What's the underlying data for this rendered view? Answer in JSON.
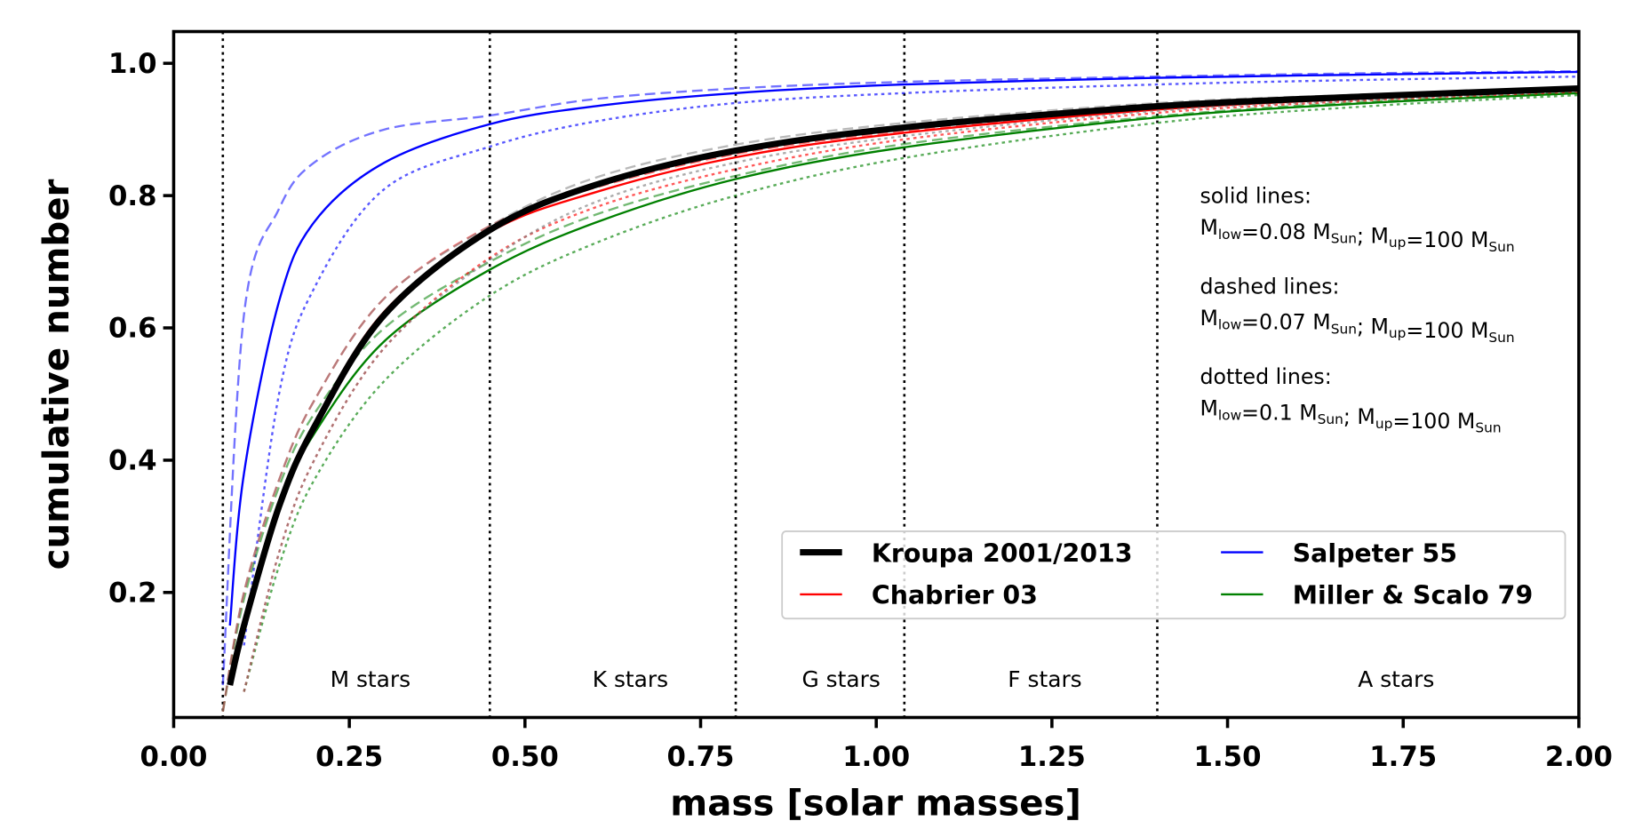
{
  "chart_data": {
    "type": "line",
    "title": "",
    "xlabel": "mass [solar masses]",
    "ylabel": "cumulative number",
    "xlim": [
      0.0,
      2.0
    ],
    "ylim": [
      0.011,
      1.048
    ],
    "xticks": [
      "0.00",
      "0.25",
      "0.50",
      "0.75",
      "1.00",
      "1.25",
      "1.50",
      "1.75",
      "2.00"
    ],
    "yticks": [
      "0.2",
      "0.4",
      "0.6",
      "0.8",
      "1.0"
    ],
    "grid": false,
    "legend_placement": "lower-right",
    "legend": [
      {
        "name": "Kroupa 2001/2013",
        "color": "#000000"
      },
      {
        "name": "Salpeter 55",
        "color": "#0000ff"
      },
      {
        "name": "Chabrier 03",
        "color": "#ff0000"
      },
      {
        "name": "Miller & Scalo 79",
        "color": "#008000"
      }
    ],
    "class_boundaries": [
      0.07,
      0.45,
      0.8,
      1.04,
      1.4
    ],
    "class_labels": [
      {
        "label": "M stars",
        "x": 0.28
      },
      {
        "label": "K stars",
        "x": 0.65
      },
      {
        "label": "G stars",
        "x": 0.95
      },
      {
        "label": "F stars",
        "x": 1.24
      },
      {
        "label": "A stars",
        "x": 1.74
      }
    ],
    "annotations": [
      {
        "title": "solid lines:",
        "mlow": "0.08",
        "mup": "100"
      },
      {
        "title": "dashed lines:",
        "mlow": "0.07",
        "mup": "100"
      },
      {
        "title": "dotted lines:",
        "mlow": "0.1",
        "mup": "100"
      }
    ],
    "annotation_parts": {
      "M": "M",
      "low": "low",
      "up": "up",
      "sun": "Sun"
    },
    "series": [
      {
        "imf": "Kroupa 2001/2013",
        "style": "solid",
        "color": "#000000",
        "x": [
          0.08,
          0.1,
          0.15,
          0.2,
          0.3,
          0.45,
          0.6,
          0.8,
          1.04,
          1.4,
          1.7,
          2.0
        ],
        "y": [
          0.06,
          0.15,
          0.33,
          0.45,
          0.62,
          0.748,
          0.816,
          0.868,
          0.903,
          0.935,
          0.95,
          0.962
        ]
      },
      {
        "imf": "Kroupa 2001/2013",
        "style": "dashed",
        "color": "#808080",
        "x": [
          0.07,
          0.1,
          0.15,
          0.2,
          0.3,
          0.45,
          0.6,
          0.8,
          1.04,
          1.4,
          1.7,
          2.0
        ],
        "y": [
          0.02,
          0.2,
          0.37,
          0.49,
          0.645,
          0.754,
          0.827,
          0.877,
          0.91,
          0.94,
          0.953,
          0.964
        ]
      },
      {
        "imf": "Kroupa 2001/2013",
        "style": "dotted",
        "color": "#808080",
        "x": [
          0.1,
          0.15,
          0.2,
          0.3,
          0.45,
          0.6,
          0.8,
          1.04,
          1.4,
          1.7,
          2.0
        ],
        "y": [
          0.05,
          0.26,
          0.4,
          0.57,
          0.703,
          0.79,
          0.85,
          0.89,
          0.928,
          0.945,
          0.958
        ]
      },
      {
        "imf": "Chabrier 03",
        "style": "solid",
        "color": "#ff0000",
        "x": [
          0.08,
          0.1,
          0.15,
          0.2,
          0.3,
          0.45,
          0.6,
          0.8,
          1.04,
          1.4,
          1.7,
          2.0
        ],
        "y": [
          0.06,
          0.15,
          0.33,
          0.455,
          0.625,
          0.745,
          0.805,
          0.858,
          0.895,
          0.93,
          0.947,
          0.96
        ]
      },
      {
        "imf": "Chabrier 03",
        "style": "dashed",
        "color": "#ff0000",
        "x": [
          0.07,
          0.1,
          0.15,
          0.2,
          0.3,
          0.45,
          0.6,
          0.8,
          1.04,
          1.4,
          1.7,
          2.0
        ],
        "y": [
          0.02,
          0.2,
          0.37,
          0.49,
          0.645,
          0.754,
          0.812,
          0.863,
          0.898,
          0.932,
          0.948,
          0.961
        ]
      },
      {
        "imf": "Chabrier 03",
        "style": "dotted",
        "color": "#ff0000",
        "x": [
          0.1,
          0.15,
          0.2,
          0.3,
          0.45,
          0.6,
          0.8,
          1.04,
          1.4,
          1.7,
          2.0
        ],
        "y": [
          0.05,
          0.26,
          0.4,
          0.57,
          0.706,
          0.782,
          0.84,
          0.885,
          0.925,
          0.944,
          0.957
        ]
      },
      {
        "imf": "Salpeter 55",
        "style": "solid",
        "color": "#0000ff",
        "x": [
          0.08,
          0.1,
          0.15,
          0.2,
          0.3,
          0.45,
          0.6,
          0.8,
          1.04,
          1.4,
          1.7,
          2.0
        ],
        "y": [
          0.15,
          0.38,
          0.64,
          0.76,
          0.85,
          0.908,
          0.935,
          0.955,
          0.968,
          0.978,
          0.983,
          0.987
        ]
      },
      {
        "imf": "Salpeter 55",
        "style": "dashed",
        "color": "#0000ff",
        "x": [
          0.07,
          0.1,
          0.15,
          0.2,
          0.3,
          0.45,
          0.6,
          0.8,
          1.04,
          1.4,
          1.7,
          2.0
        ],
        "y": [
          0.06,
          0.62,
          0.78,
          0.85,
          0.9,
          0.921,
          0.946,
          0.962,
          0.972,
          0.98,
          0.985,
          0.988
        ]
      },
      {
        "imf": "Salpeter 55",
        "style": "dotted",
        "color": "#0000ff",
        "x": [
          0.1,
          0.15,
          0.2,
          0.3,
          0.45,
          0.6,
          0.8,
          1.04,
          1.4,
          1.7,
          2.0
        ],
        "y": [
          0.12,
          0.5,
          0.66,
          0.81,
          0.874,
          0.912,
          0.94,
          0.955,
          0.968,
          0.975,
          0.98
        ]
      },
      {
        "imf": "Miller & Scalo 79",
        "style": "solid",
        "color": "#008000",
        "x": [
          0.08,
          0.1,
          0.15,
          0.2,
          0.3,
          0.45,
          0.6,
          0.8,
          1.04,
          1.4,
          1.7,
          2.0
        ],
        "y": [
          0.06,
          0.15,
          0.33,
          0.44,
          0.58,
          0.688,
          0.759,
          0.825,
          0.873,
          0.918,
          0.94,
          0.955
        ]
      },
      {
        "imf": "Miller & Scalo 79",
        "style": "dashed",
        "color": "#008000",
        "x": [
          0.07,
          0.1,
          0.15,
          0.2,
          0.3,
          0.45,
          0.6,
          0.8,
          1.04,
          1.4,
          1.7,
          2.0
        ],
        "y": [
          0.02,
          0.19,
          0.36,
          0.47,
          0.6,
          0.7,
          0.771,
          0.83,
          0.878,
          0.92,
          0.942,
          0.956
        ]
      },
      {
        "imf": "Miller & Scalo 79",
        "style": "dotted",
        "color": "#008000",
        "x": [
          0.1,
          0.15,
          0.2,
          0.3,
          0.45,
          0.6,
          0.8,
          1.04,
          1.4,
          1.7,
          2.0
        ],
        "y": [
          0.05,
          0.24,
          0.37,
          0.52,
          0.649,
          0.728,
          0.8,
          0.857,
          0.91,
          0.935,
          0.952
        ]
      }
    ]
  }
}
